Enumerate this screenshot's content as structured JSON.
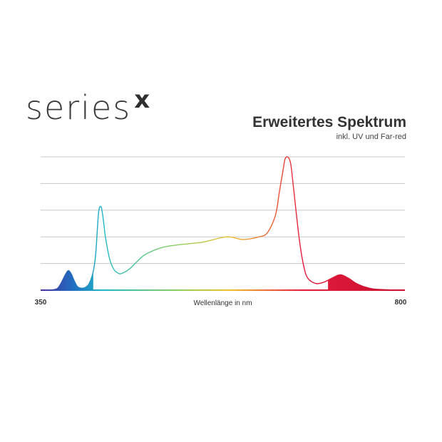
{
  "brand": {
    "logo_text": "series",
    "logo_mark": "x"
  },
  "chart_data": {
    "type": "area",
    "title": "Erweitertes Spektrum",
    "subtitle": "inkl. UV und Far-red",
    "xlabel": "Wellenlänge in nm",
    "ylabel": "",
    "xlim": [
      350,
      800
    ],
    "ylim": [
      0,
      1
    ],
    "x_tick_labels": [
      "350",
      "800"
    ],
    "grid": true,
    "gridlines": 5,
    "colors": {
      "uv": "#4a2fa0",
      "blue": "#1f6fbf",
      "cyan": "#21b6c8",
      "green": "#8ecf5a",
      "yellow": "#f2c12e",
      "red": "#e31a3c",
      "farred": "#c8102e",
      "grid": "#c8c8c8"
    },
    "x": [
      350,
      360,
      370,
      375,
      380,
      383,
      385,
      388,
      390,
      395,
      400,
      405,
      410,
      415,
      418,
      420,
      422,
      425,
      428,
      430,
      435,
      440,
      445,
      450,
      460,
      470,
      480,
      500,
      520,
      550,
      580,
      600,
      620,
      630,
      640,
      645,
      650,
      652,
      655,
      658,
      660,
      665,
      670,
      675,
      680,
      690,
      700,
      710,
      720,
      730,
      740,
      750,
      760,
      770,
      780,
      790,
      800
    ],
    "values": [
      0,
      0,
      0.01,
      0.05,
      0.11,
      0.14,
      0.145,
      0.12,
      0.09,
      0.03,
      0.015,
      0.02,
      0.05,
      0.14,
      0.27,
      0.45,
      0.6,
      0.62,
      0.5,
      0.4,
      0.24,
      0.16,
      0.13,
      0.125,
      0.16,
      0.22,
      0.27,
      0.32,
      0.34,
      0.36,
      0.4,
      0.38,
      0.4,
      0.43,
      0.56,
      0.74,
      0.92,
      0.985,
      1.0,
      0.97,
      0.9,
      0.62,
      0.36,
      0.18,
      0.09,
      0.05,
      0.06,
      0.09,
      0.115,
      0.09,
      0.05,
      0.025,
      0.01,
      0.005,
      0.002,
      0,
      0
    ],
    "filled_ranges": [
      [
        370,
        415
      ],
      [
        705,
        800
      ]
    ]
  }
}
